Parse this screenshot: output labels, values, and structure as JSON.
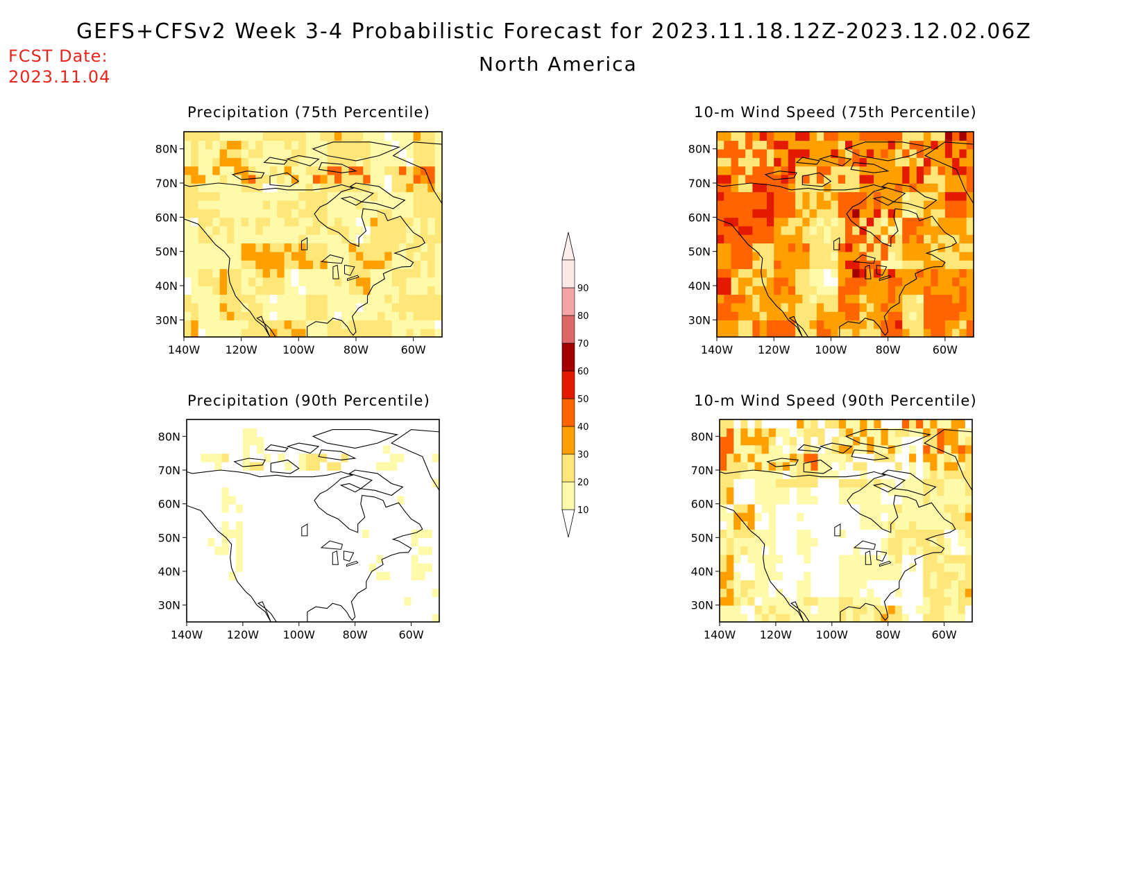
{
  "header": {
    "title": "GEFS+CFSv2 Week 3-4 Probabilistic Forecast for 2023.11.18.12Z-2023.12.02.06Z",
    "region": "North America",
    "fcst_label": "FCST Date:",
    "fcst_date": "2023.11.04"
  },
  "axes": {
    "lat_ticks": [
      "80N",
      "70N",
      "60N",
      "50N",
      "40N",
      "30N"
    ],
    "lon_ticks": [
      "140W",
      "120W",
      "100W",
      "80W",
      "60W"
    ]
  },
  "panels": [
    {
      "id": "precip75",
      "title": "Precipitation (75th Percentile)",
      "field": "precip",
      "base_level": 20
    },
    {
      "id": "wind75",
      "title": "10-m Wind Speed (75th Percentile)",
      "field": "wind",
      "base_level": 30
    },
    {
      "id": "precip90",
      "title": "Precipitation (90th Percentile)",
      "field": "precip",
      "base_level": 0
    },
    {
      "id": "wind90",
      "title": "10-m Wind Speed (90th Percentile)",
      "field": "wind",
      "base_level": 10
    }
  ],
  "colorbar": {
    "levels": [
      "10",
      "20",
      "30",
      "40",
      "50",
      "60",
      "70",
      "80",
      "90"
    ],
    "colors": [
      "#fffaaa",
      "#ffe678",
      "#ffa000",
      "#ff6400",
      "#e41a00",
      "#a50000",
      "#dd6666",
      "#f4a4a4",
      "#fde8e8"
    ]
  }
}
